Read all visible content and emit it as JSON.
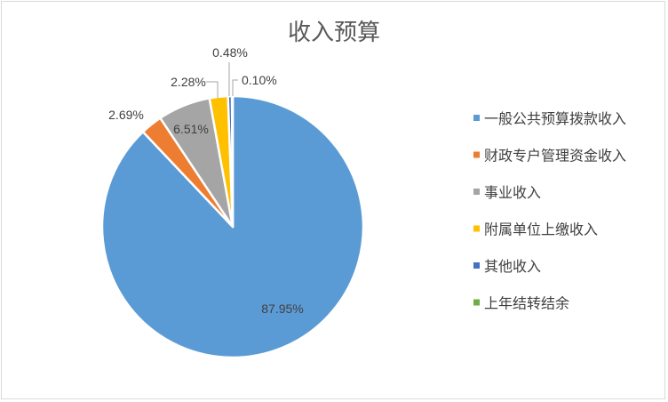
{
  "chart_data": {
    "type": "pie",
    "title": "收入预算",
    "categories": [
      "一般公共预算拨款收入",
      "财政专户管理资金收入",
      "事业收入",
      "附属单位上缴收入",
      "其他收入",
      "上年结转结余"
    ],
    "values": [
      87.95,
      2.69,
      6.51,
      2.28,
      0.48,
      0.1
    ],
    "data_labels": [
      "87.95%",
      "2.69%",
      "6.51%",
      "2.28%",
      "0.48%",
      "0.10%"
    ],
    "colors": [
      "#5b9bd5",
      "#ed7d31",
      "#a5a5a5",
      "#ffc000",
      "#4472c4",
      "#70ad47"
    ],
    "legend_position": "right",
    "start_angle": "12 o'clock",
    "direction": "clockwise"
  }
}
